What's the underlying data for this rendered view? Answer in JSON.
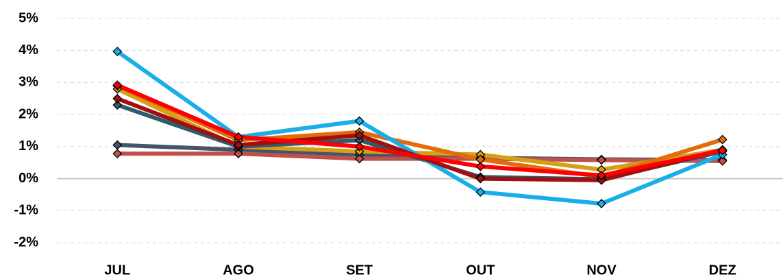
{
  "chart_data": {
    "type": "line",
    "categories": [
      "JUL",
      "AGO",
      "SET",
      "OUT",
      "NOV",
      "DEZ"
    ],
    "series": [
      {
        "color": "#44546a",
        "values": [
          1.05,
          0.9,
          0.75,
          0.65,
          0.6,
          0.58
        ]
      },
      {
        "color": "#c0504d",
        "values": [
          0.78,
          0.78,
          0.62,
          0.62,
          0.58,
          0.55
        ]
      },
      {
        "color": "#d4a017",
        "values": [
          2.8,
          1.0,
          0.85,
          0.75,
          0.28,
          0.9
        ]
      },
      {
        "color": "#e36c0a",
        "values": [
          2.9,
          1.2,
          1.45,
          0.6,
          0.05,
          1.22
        ]
      },
      {
        "color": "#2f5b6b",
        "values": [
          2.3,
          1.0,
          1.2,
          0.05,
          -0.02,
          0.85
        ]
      },
      {
        "color": "#1aaee8",
        "values": [
          3.97,
          1.3,
          1.8,
          -0.42,
          -0.78,
          0.75
        ]
      },
      {
        "color": "#a01010",
        "values": [
          2.5,
          1.05,
          1.35,
          0.0,
          -0.05,
          0.9
        ]
      },
      {
        "color": "#ff0000",
        "values": [
          2.92,
          1.3,
          1.0,
          0.38,
          0.1,
          0.88
        ]
      }
    ],
    "ylim": [
      -2,
      5
    ],
    "yticks": [
      {
        "value": -2,
        "label": "-2%"
      },
      {
        "value": -1,
        "label": "-1%"
      },
      {
        "value": 0,
        "label": "0%"
      },
      {
        "value": 1,
        "label": "1%"
      },
      {
        "value": 2,
        "label": "2%"
      },
      {
        "value": 3,
        "label": "3%"
      },
      {
        "value": 4,
        "label": "4%"
      },
      {
        "value": 5,
        "label": "5%"
      }
    ],
    "grid": true
  }
}
